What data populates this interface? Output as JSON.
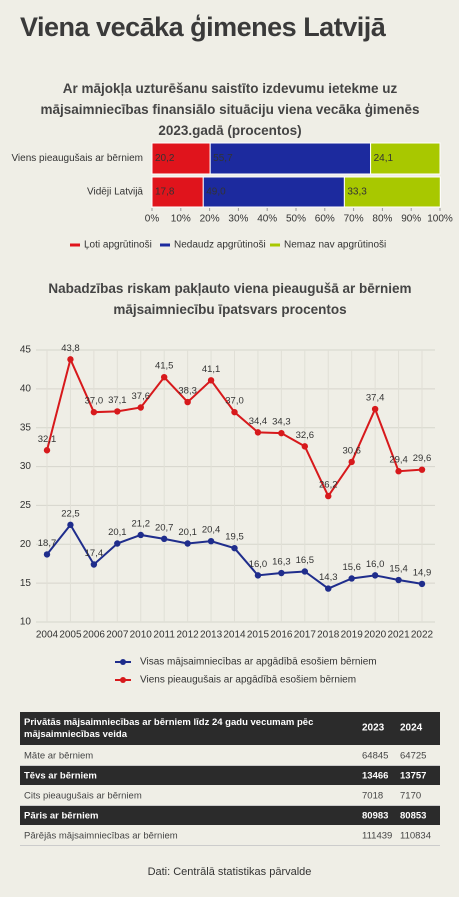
{
  "title": "Viena vecāka ģimenes Latvijā",
  "chart_data": [
    {
      "type": "hbar-stacked",
      "title": "Ar mājokļa uzturēšanu saistīto izdevumu ietekme uz mājsaimniecības finansiālo situāciju viena vecāka ģimenēs 2023.gadā (procentos)",
      "categories": [
        "Viens pieaugušais ar bērniem",
        "Vidēji Latvijā"
      ],
      "series": [
        {
          "name": "Ļoti apgrūtinoši",
          "color": "#e0141c",
          "values": [
            20.2,
            17.8
          ],
          "value_labels": [
            "20,2",
            "17,8"
          ]
        },
        {
          "name": "Nedaudz apgrūtinoši",
          "color": "#1c2a9e",
          "values": [
            55.7,
            49.0
          ],
          "value_labels": [
            "55,7",
            "49,0"
          ]
        },
        {
          "name": "Nemaz nav apgrūtinoši",
          "color": "#a8c800",
          "values": [
            24.1,
            33.3
          ],
          "value_labels": [
            "24,1",
            "33,3"
          ]
        }
      ],
      "xlim": [
        0,
        100
      ],
      "xticks": [
        {
          "value": 0,
          "label": "0%"
        },
        {
          "value": 10,
          "label": "10%"
        },
        {
          "value": 20,
          "label": "20%"
        },
        {
          "value": 30,
          "label": "30%"
        },
        {
          "value": 40,
          "label": "40%"
        },
        {
          "value": 50,
          "label": "50%"
        },
        {
          "value": 60,
          "label": "60%"
        },
        {
          "value": 70,
          "label": "70%"
        },
        {
          "value": 80,
          "label": "80%"
        },
        {
          "value": 90,
          "label": "90%"
        },
        {
          "value": 100,
          "label": "100%"
        }
      ]
    },
    {
      "type": "line",
      "title": "Nabadzības riskam pakļauto viena pieaugušā ar bērniem mājsaimniecību īpatsvars procentos",
      "categories": [
        "2004",
        "2005",
        "2006",
        "2007",
        "2010",
        "2011",
        "2012",
        "2013",
        "2014",
        "2015",
        "2016",
        "2017",
        "2018",
        "2019",
        "2020",
        "2021",
        "2022"
      ],
      "series": [
        {
          "name": "Visas mājsaimniecības ar apgādībā esošiem bērniem",
          "color": "#1f2d8c",
          "values": [
            18.7,
            22.5,
            17.4,
            20.1,
            21.2,
            20.7,
            20.1,
            20.4,
            19.5,
            16.0,
            16.3,
            16.5,
            14.3,
            15.6,
            16.0,
            15.4,
            14.9
          ],
          "value_labels": [
            "18,7",
            "22,5",
            "17,4",
            "20,1",
            "21,2",
            "20,7",
            "20,1",
            "20,4",
            "19,5",
            "16,0",
            "16,3",
            "16,5",
            "14,3",
            "15,6",
            "16,0",
            "15,4",
            "14,9"
          ]
        },
        {
          "name": "Viens pieaugušais ar apgādībā esošiem bērniem",
          "color": "#d7191c",
          "values": [
            32.1,
            43.8,
            37.0,
            37.1,
            37.6,
            41.5,
            38.3,
            41.1,
            37.0,
            34.4,
            34.3,
            32.6,
            26.2,
            30.6,
            37.4,
            29.4,
            29.6
          ],
          "value_labels": [
            "32,1",
            "43,8",
            "37,0",
            "37,1",
            "37,6",
            "41,5",
            "38,3",
            "41,1",
            "37,0",
            "34,4",
            "34,3",
            "32,6",
            "26,2",
            "30,6",
            "37,4",
            "29,4",
            "29,6"
          ]
        }
      ],
      "ylim": [
        10,
        45
      ],
      "yticks": [
        10,
        15,
        20,
        25,
        30,
        35,
        40,
        45
      ],
      "grid": true
    }
  ],
  "table": {
    "header": [
      "Privātās mājsaimniecības ar bērniem līdz 24 gadu vecumam pēc mājsaimniecības veida",
      "2023",
      "2024"
    ],
    "rows": [
      [
        "Māte ar bērniem",
        "64845",
        "64725"
      ],
      [
        "Tēvs ar bērniem",
        "13466",
        "13757"
      ],
      [
        "Cits pieaugušais ar bērniem",
        "7018",
        "7170"
      ],
      [
        "Pāris ar bērniem",
        "80983",
        "80853"
      ],
      [
        "Pārējās mājsaimniecības ar bērniem",
        "111439",
        "110834"
      ]
    ]
  },
  "source": "Dati: Centrālā statistikas pārvalde"
}
